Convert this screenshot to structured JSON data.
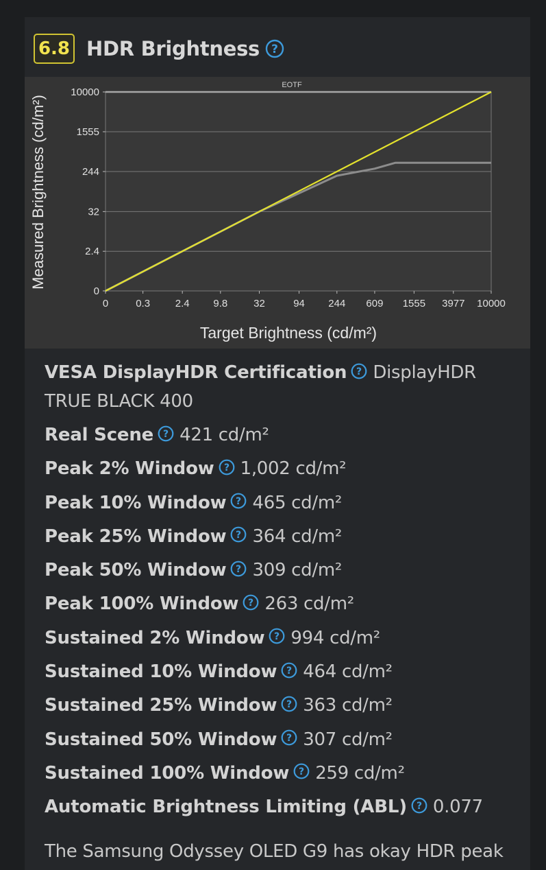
{
  "header": {
    "score": "6.8",
    "title": "HDR Brightness"
  },
  "chart_data": {
    "type": "line",
    "title": "EOTF",
    "xlabel": "Target Brightness (cd/m²)",
    "ylabel": "Measured Brightness (cd/m²)",
    "x_ticks": [
      "0",
      "0.3",
      "2.4",
      "9.8",
      "32",
      "94",
      "244",
      "609",
      "1555",
      "3977",
      "10000"
    ],
    "y_ticks": [
      "0",
      "2.4",
      "32",
      "244",
      "1555",
      "10000"
    ],
    "scale": "pq",
    "grid": true,
    "series": [
      {
        "name": "",
        "color": "#8c8c8c",
        "points": [
          [
            0,
            0
          ],
          [
            2.4,
            2.4
          ],
          [
            32,
            32
          ],
          [
            244,
            200
          ],
          [
            609,
            280
          ],
          [
            1000,
            370
          ],
          [
            1555,
            370
          ],
          [
            3977,
            370
          ],
          [
            10000,
            370
          ]
        ]
      },
      {
        "name": "",
        "color": "#e4e22d",
        "points": [
          [
            0,
            0
          ],
          [
            10000,
            10000
          ]
        ]
      }
    ]
  },
  "specs": [
    {
      "label": "VESA DisplayHDR Certification",
      "value": "DisplayHDR TRUE BLACK 400"
    },
    {
      "label": "Real Scene",
      "value": "421 cd/m²"
    },
    {
      "label": "Peak 2% Window",
      "value": "1,002 cd/m²"
    },
    {
      "label": "Peak 10% Window",
      "value": "465 cd/m²"
    },
    {
      "label": "Peak 25% Window",
      "value": "364 cd/m²"
    },
    {
      "label": "Peak 50% Window",
      "value": "309 cd/m²"
    },
    {
      "label": "Peak 100% Window",
      "value": "263 cd/m²"
    },
    {
      "label": "Sustained 2% Window",
      "value": "994 cd/m²"
    },
    {
      "label": "Sustained 10% Window",
      "value": "464 cd/m²"
    },
    {
      "label": "Sustained 25% Window",
      "value": "363 cd/m²"
    },
    {
      "label": "Sustained 50% Window",
      "value": "307 cd/m²"
    },
    {
      "label": "Sustained 100% Window",
      "value": "259 cd/m²"
    },
    {
      "label": "Automatic Brightness Limiting (ABL)",
      "value": "0.077"
    }
  ],
  "description": "The Samsung Odyssey OLED G9 has okay HDR peak",
  "colors": {
    "accent": "#3d9bdc",
    "score_border": "#d1c432",
    "score_text": "#f1e34f"
  }
}
